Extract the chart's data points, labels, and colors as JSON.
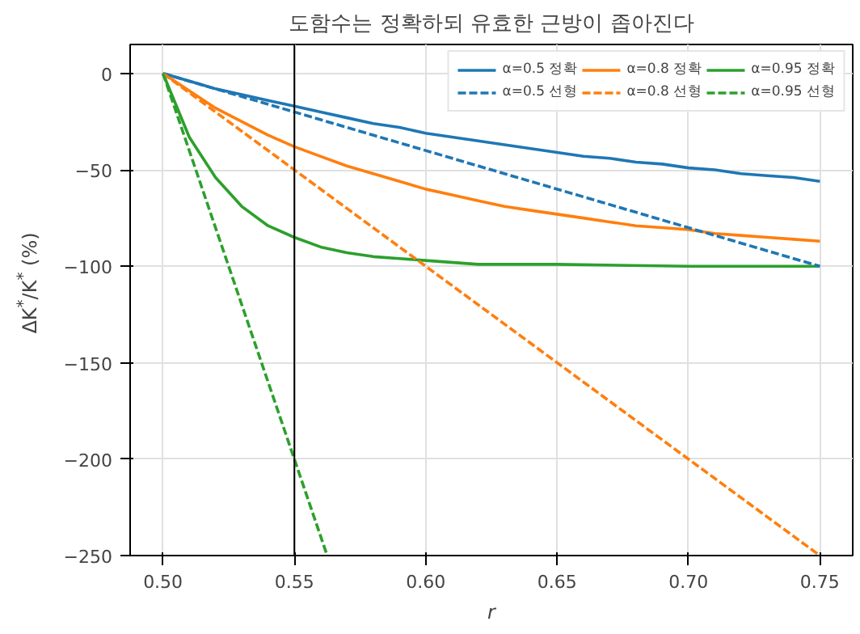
{
  "chart_data": {
    "type": "line",
    "title": "도함수는 정확하되 유효한 근방이 좁아진다",
    "xlabel": "r",
    "ylabel": "ΔK$^{*}$/K$^{*}$ (%)",
    "xlim": [
      0.4875,
      0.7625
    ],
    "xticks": [
      {
        "value": 0.5,
        "label": "0.50"
      },
      {
        "value": 0.55,
        "label": "0.55"
      },
      {
        "value": 0.6,
        "label": "0.60"
      },
      {
        "value": 0.65,
        "label": "0.65"
      },
      {
        "value": 0.7,
        "label": "0.70"
      },
      {
        "value": 0.75,
        "label": "0.75"
      }
    ],
    "ylim": [
      -250,
      15
    ],
    "yticks": [
      0,
      -50,
      -100,
      -150,
      -200,
      -250
    ],
    "grid": true,
    "legend": "top right",
    "marker": "none",
    "ref_lines": [
      {
        "axis": "x",
        "value": 0.55,
        "color": "#000000"
      }
    ],
    "series": [
      {
        "name": "α=0.5 정확",
        "color": "#1f77b4",
        "line_style": "solid",
        "x": [
          0.5,
          0.51,
          0.52,
          0.53,
          0.54,
          0.55,
          0.56,
          0.57,
          0.58,
          0.59,
          0.6,
          0.61,
          0.62,
          0.63,
          0.64,
          0.65,
          0.66,
          0.67,
          0.68,
          0.69,
          0.7,
          0.71,
          0.72,
          0.73,
          0.74,
          0.75
        ],
        "values": [
          0,
          -4,
          -8,
          -11,
          -14,
          -17,
          -20,
          -23,
          -26,
          -28,
          -31,
          -33,
          -35,
          -37,
          -39,
          -41,
          -43,
          -44,
          -46,
          -47,
          -49,
          -50,
          -52,
          -53,
          -54,
          -56
        ]
      },
      {
        "name": "α=0.5 선형",
        "color": "#1f77b4",
        "line_style": "dashed",
        "x": [
          0.5,
          0.75
        ],
        "values": [
          0,
          -100
        ]
      },
      {
        "name": "α=0.8 정확",
        "color": "#ff7f0e",
        "line_style": "solid",
        "x": [
          0.5,
          0.51,
          0.52,
          0.53,
          0.54,
          0.55,
          0.56,
          0.57,
          0.58,
          0.59,
          0.6,
          0.61,
          0.62,
          0.63,
          0.64,
          0.65,
          0.66,
          0.67,
          0.68,
          0.69,
          0.7,
          0.71,
          0.72,
          0.73,
          0.74,
          0.75
        ],
        "values": [
          0,
          -9,
          -18,
          -25,
          -32,
          -38,
          -43,
          -48,
          -52,
          -56,
          -60,
          -63,
          -66,
          -69,
          -71,
          -73,
          -75,
          -77,
          -79,
          -80,
          -81,
          -83,
          -84,
          -85,
          -86,
          -87
        ]
      },
      {
        "name": "α=0.8 선형",
        "color": "#ff7f0e",
        "line_style": "dashed",
        "x": [
          0.5,
          0.75
        ],
        "values": [
          0,
          -250
        ]
      },
      {
        "name": "α=0.95 정확",
        "color": "#2ca02c",
        "line_style": "solid",
        "x": [
          0.5,
          0.51,
          0.52,
          0.53,
          0.54,
          0.55,
          0.56,
          0.57,
          0.58,
          0.59,
          0.6,
          0.62,
          0.65,
          0.7,
          0.75
        ],
        "values": [
          0,
          -33,
          -54,
          -69,
          -79,
          -85,
          -90,
          -93,
          -95,
          -96,
          -97,
          -99,
          -99,
          -100,
          -100
        ]
      },
      {
        "name": "α=0.95 선형",
        "color": "#2ca02c",
        "line_style": "dashed",
        "x": [
          0.5,
          0.5625
        ],
        "values": [
          0,
          -250
        ]
      }
    ]
  }
}
